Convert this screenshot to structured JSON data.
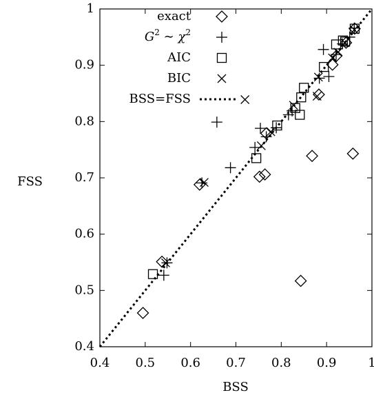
{
  "chart_data": {
    "type": "scatter",
    "title": "",
    "xlabel": "BSS",
    "ylabel": "FSS",
    "xlim": [
      0.4,
      1.0
    ],
    "ylim": [
      0.4,
      1.0
    ],
    "xticks": [
      "0.4",
      "0.5",
      "0.6",
      "0.7",
      "0.8",
      "0.9",
      "1"
    ],
    "yticks": [
      "0.4",
      "0.5",
      "0.6",
      "0.7",
      "0.8",
      "0.9",
      "1"
    ],
    "grid": false,
    "legend_position": "top-left",
    "series": [
      {
        "name": "exact",
        "marker": "diamond",
        "points": [
          [
            0.495,
            0.46
          ],
          [
            0.537,
            0.551
          ],
          [
            0.62,
            0.688
          ],
          [
            0.752,
            0.702
          ],
          [
            0.764,
            0.706
          ],
          [
            0.767,
            0.779
          ],
          [
            0.843,
            0.517
          ],
          [
            0.868,
            0.739
          ],
          [
            0.883,
            0.848
          ],
          [
            0.913,
            0.901
          ],
          [
            0.922,
            0.917
          ],
          [
            0.943,
            0.94
          ],
          [
            0.958,
            0.743
          ],
          [
            0.962,
            0.965
          ]
        ]
      },
      {
        "name": "G^2 ~ χ^2",
        "marker": "plus",
        "points": [
          [
            0.541,
            0.527
          ],
          [
            0.548,
            0.549
          ],
          [
            0.625,
            0.691
          ],
          [
            0.658,
            0.799
          ],
          [
            0.688,
            0.718
          ],
          [
            0.742,
            0.754
          ],
          [
            0.754,
            0.788
          ],
          [
            0.767,
            0.773
          ],
          [
            0.789,
            0.789
          ],
          [
            0.816,
            0.812
          ],
          [
            0.824,
            0.819
          ],
          [
            0.884,
            0.877
          ],
          [
            0.893,
            0.928
          ],
          [
            0.905,
            0.88
          ],
          [
            0.921,
            0.919
          ],
          [
            0.935,
            0.938
          ],
          [
            0.951,
            0.95
          ],
          [
            0.961,
            0.966
          ]
        ]
      },
      {
        "name": "AIC",
        "marker": "square",
        "points": [
          [
            0.517,
            0.529
          ],
          [
            0.745,
            0.735
          ],
          [
            0.791,
            0.793
          ],
          [
            0.831,
            0.824
          ],
          [
            0.841,
            0.812
          ],
          [
            0.844,
            0.843
          ],
          [
            0.85,
            0.86
          ],
          [
            0.894,
            0.897
          ],
          [
            0.921,
            0.937
          ],
          [
            0.936,
            0.944
          ],
          [
            0.941,
            0.942
          ],
          [
            0.962,
            0.965
          ]
        ]
      },
      {
        "name": "BIC",
        "marker": "cross",
        "points": [
          [
            0.545,
            0.549
          ],
          [
            0.63,
            0.692
          ],
          [
            0.72,
            0.839
          ],
          [
            0.756,
            0.757
          ],
          [
            0.777,
            0.782
          ],
          [
            0.827,
            0.829
          ],
          [
            0.879,
            0.845
          ],
          [
            0.882,
            0.879
          ],
          [
            0.913,
            0.913
          ],
          [
            0.925,
            0.923
          ],
          [
            0.94,
            0.94
          ],
          [
            0.961,
            0.963
          ]
        ]
      }
    ],
    "reference_line": {
      "name": "BSS=FSS",
      "style": "dotted",
      "x": [
        0.4,
        1.0
      ],
      "y": [
        0.4,
        1.0
      ]
    }
  }
}
